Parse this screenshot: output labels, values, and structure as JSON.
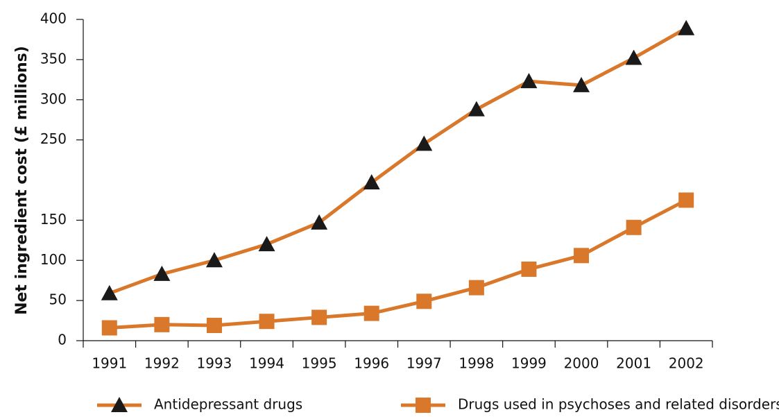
{
  "chart_data": {
    "type": "line",
    "y_label": "Net ingredient cost (£ millions)",
    "categories": [
      "1991",
      "1992",
      "1993",
      "1994",
      "1995",
      "1996",
      "1997",
      "1998",
      "1999",
      "2000",
      "2001",
      "2002"
    ],
    "series": [
      {
        "name": "Antidepressant drugs",
        "color": "#d9782a",
        "marker": "triangle",
        "marker_color": "#1a1a1a",
        "values": [
          59,
          83,
          100,
          120,
          147,
          197,
          245,
          288,
          323,
          318,
          352,
          389
        ]
      },
      {
        "name": "Drugs used in psychoses and related disorders",
        "color": "#d9782a",
        "marker": "square",
        "marker_color": "#d9782a",
        "values": [
          16,
          20,
          19,
          24,
          29,
          34,
          49,
          66,
          89,
          106,
          141,
          175
        ]
      }
    ],
    "ylim": [
      0,
      400
    ],
    "yticks": [
      0,
      50,
      100,
      150,
      250,
      300,
      350,
      400
    ],
    "grid": false
  }
}
